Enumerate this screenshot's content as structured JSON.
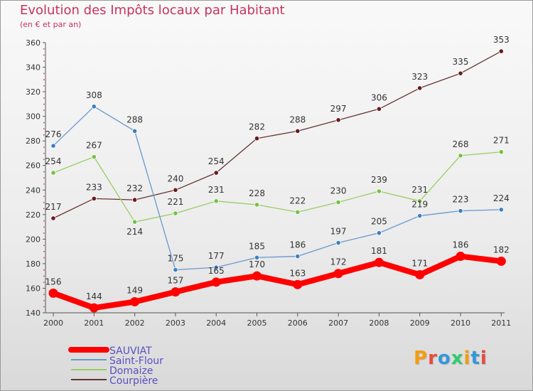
{
  "title": "Evolution des Impôts locaux par Habitant",
  "subtitle": "(en € et par an)",
  "logo": "Proxiti",
  "chart_data": {
    "type": "line",
    "title": "Evolution des Impôts locaux par Habitant",
    "subtitle": "(en € et par an)",
    "x": [
      "2000",
      "2001",
      "2002",
      "2003",
      "2004",
      "2005",
      "2006",
      "2007",
      "2008",
      "2009",
      "2010",
      "2011"
    ],
    "ylim": [
      140,
      360
    ],
    "yticks": [
      140,
      160,
      180,
      200,
      220,
      240,
      260,
      280,
      300,
      320,
      340,
      360
    ],
    "grid": false,
    "legend_position": "bottom-left",
    "series": [
      {
        "name": "SAUVIAT",
        "color": "#ff0000",
        "values": [
          156,
          144,
          149,
          157,
          165,
          170,
          163,
          172,
          181,
          171,
          186,
          182
        ]
      },
      {
        "name": "Saint-Flour",
        "color": "#6699cc",
        "values": [
          276,
          308,
          288,
          175,
          177,
          185,
          186,
          197,
          205,
          219,
          223,
          224
        ]
      },
      {
        "name": "Domaize",
        "color": "#99cc66",
        "values": [
          254,
          267,
          214,
          221,
          231,
          228,
          222,
          230,
          239,
          231,
          268,
          271
        ]
      },
      {
        "name": "Courpière",
        "color": "#663333",
        "values": [
          217,
          233,
          232,
          240,
          254,
          282,
          288,
          297,
          306,
          323,
          335,
          353
        ]
      }
    ]
  }
}
